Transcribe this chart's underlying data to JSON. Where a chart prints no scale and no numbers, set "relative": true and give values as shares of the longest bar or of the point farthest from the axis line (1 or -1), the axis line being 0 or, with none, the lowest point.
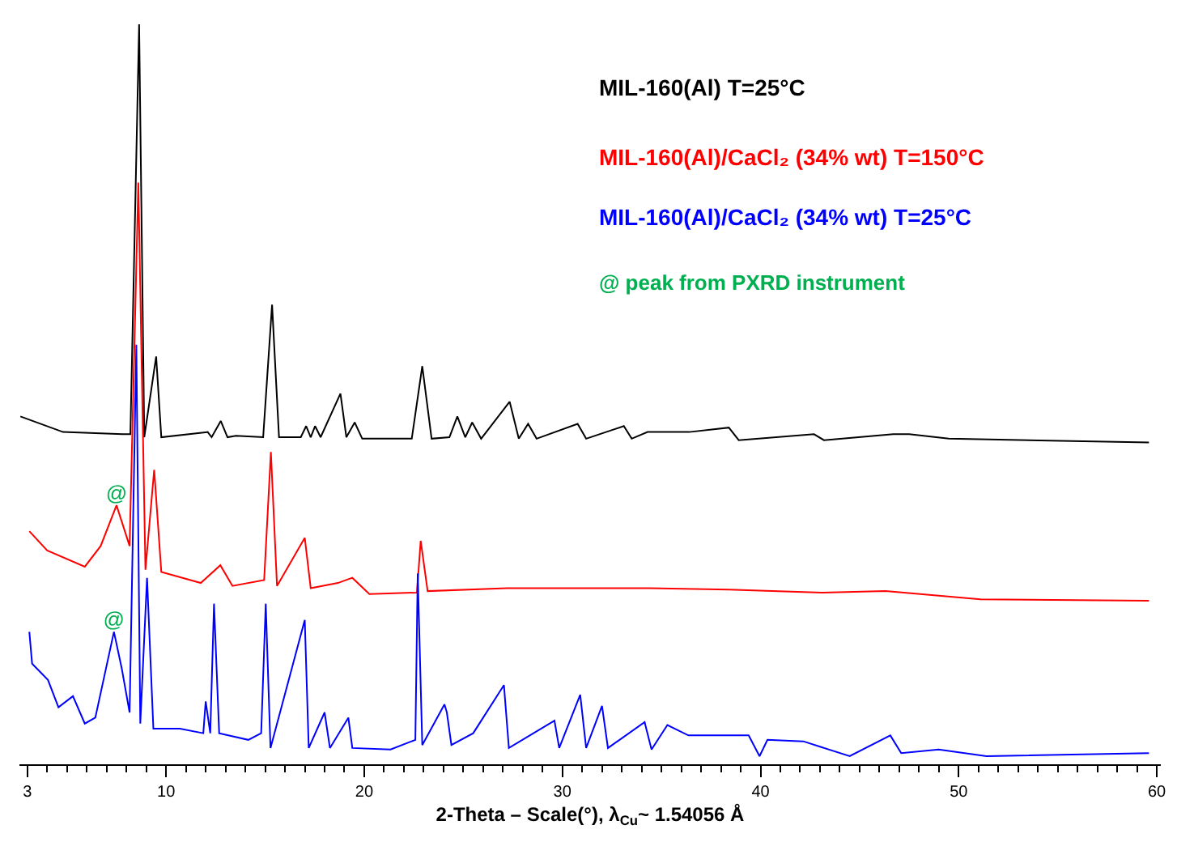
{
  "chart_data": {
    "type": "line",
    "relative": true,
    "xlabel": "2-Theta – Scale(°), λ$_{Cu}$~ 1.54056 Å",
    "xlim": [
      2.6,
      60.2
    ],
    "xticks": [
      3,
      {
        "value": 4,
        "label": null
      },
      {
        "value": 5,
        "label": null
      },
      {
        "value": 6,
        "label": null
      },
      {
        "value": 7,
        "label": null
      },
      {
        "value": 8,
        "label": null
      },
      {
        "value": 9,
        "label": null
      },
      10,
      {
        "value": 11,
        "label": null
      },
      {
        "value": 12,
        "label": null
      },
      {
        "value": 13,
        "label": null
      },
      {
        "value": 14,
        "label": null
      },
      {
        "value": 15,
        "label": null
      },
      {
        "value": 16,
        "label": null
      },
      {
        "value": 17,
        "label": null
      },
      {
        "value": 18,
        "label": null
      },
      {
        "value": 19,
        "label": null
      },
      20,
      {
        "value": 21,
        "label": null
      },
      {
        "value": 22,
        "label": null
      },
      {
        "value": 23,
        "label": null
      },
      {
        "value": 24,
        "label": null
      },
      {
        "value": 25,
        "label": null
      },
      {
        "value": 26,
        "label": null
      },
      {
        "value": 27,
        "label": null
      },
      {
        "value": 28,
        "label": null
      },
      {
        "value": 29,
        "label": null
      },
      30,
      {
        "value": 31,
        "label": null
      },
      {
        "value": 32,
        "label": null
      },
      {
        "value": 33,
        "label": null
      },
      {
        "value": 34,
        "label": null
      },
      {
        "value": 35,
        "label": null
      },
      {
        "value": 36,
        "label": null
      },
      {
        "value": 37,
        "label": null
      },
      {
        "value": 38,
        "label": null
      },
      {
        "value": 39,
        "label": null
      },
      40,
      {
        "value": 41,
        "label": null
      },
      {
        "value": 42,
        "label": null
      },
      {
        "value": 43,
        "label": null
      },
      {
        "value": 44,
        "label": null
      },
      {
        "value": 45,
        "label": null
      },
      {
        "value": 46,
        "label": null
      },
      {
        "value": 47,
        "label": null
      },
      {
        "value": 48,
        "label": null
      },
      {
        "value": 49,
        "label": null
      },
      50,
      {
        "value": 51,
        "label": null
      },
      {
        "value": 52,
        "label": null
      },
      {
        "value": 53,
        "label": null
      },
      {
        "value": 54,
        "label": null
      },
      {
        "value": 55,
        "label": null
      },
      {
        "value": 56,
        "label": null
      },
      {
        "value": 57,
        "label": null
      },
      {
        "value": 58,
        "label": null
      },
      {
        "value": 59,
        "label": null
      },
      60
    ],
    "tick_labels": "x",
    "grid": false,
    "legend": false,
    "marker": "none",
    "line_style": "solid",
    "series": [
      {
        "name": "MIL-160(Al) T=25°C",
        "color": "#000000",
        "x": [
          2.65,
          4.8,
          7.8,
          8.2,
          8.64,
          8.9,
          9.5,
          9.76,
          12.1,
          12.3,
          12.76,
          13.1,
          13.53,
          14.9,
          15.35,
          15.7,
          16.8,
          17.07,
          17.3,
          17.52,
          17.8,
          18.8,
          19.1,
          19.52,
          19.9,
          22.4,
          22.93,
          23.4,
          24.3,
          24.7,
          25.1,
          25.45,
          25.9,
          27.34,
          27.8,
          28.27,
          28.7,
          30.77,
          31.2,
          33.1,
          33.5,
          34.3,
          35.6,
          36.4,
          38.4,
          38.9,
          42.7,
          43.2,
          46.7,
          47.5,
          49.5,
          59.6
        ],
        "values": [
          0.47,
          0.449,
          0.446,
          0.446,
          1.0,
          0.442,
          0.551,
          0.442,
          0.449,
          0.442,
          0.464,
          0.442,
          0.444,
          0.442,
          0.621,
          0.442,
          0.442,
          0.457,
          0.442,
          0.457,
          0.442,
          0.501,
          0.442,
          0.462,
          0.44,
          0.44,
          0.538,
          0.44,
          0.442,
          0.47,
          0.442,
          0.462,
          0.44,
          0.49,
          0.44,
          0.46,
          0.44,
          0.46,
          0.44,
          0.457,
          0.44,
          0.449,
          0.449,
          0.449,
          0.455,
          0.438,
          0.446,
          0.438,
          0.446,
          0.446,
          0.44,
          0.435
        ]
      },
      {
        "name": "MIL-160(Al)/CaCl₂ (34% wt) T=150°C",
        "color": "#ff0000",
        "x": [
          3.1,
          4.0,
          5.9,
          6.7,
          7.5,
          8.16,
          8.6,
          8.96,
          9.4,
          9.76,
          11.75,
          12.74,
          13.35,
          14.95,
          15.29,
          15.6,
          17.0,
          17.3,
          18.67,
          19.4,
          20.26,
          22.66,
          22.85,
          23.2,
          27.2,
          32.9,
          34.4,
          38.4,
          43.1,
          46.3,
          51.1,
          59.6
        ],
        "values": [
          0.315,
          0.289,
          0.267,
          0.295,
          0.35,
          0.295,
          0.786,
          0.263,
          0.398,
          0.26,
          0.245,
          0.269,
          0.241,
          0.249,
          0.422,
          0.241,
          0.306,
          0.238,
          0.245,
          0.252,
          0.23,
          0.232,
          0.302,
          0.234,
          0.238,
          0.238,
          0.238,
          0.236,
          0.232,
          0.234,
          0.223,
          0.221
        ]
      },
      {
        "name": "MIL-160(Al)/CaCl₂ (34% wt) T=25°C",
        "color": "#0000ff",
        "x": [
          3.1,
          3.24,
          4.04,
          4.57,
          5.3,
          5.9,
          6.43,
          7.37,
          7.76,
          8.16,
          8.5,
          8.7,
          9.04,
          9.36,
          10.7,
          11.88,
          12.0,
          12.23,
          12.42,
          12.68,
          14.15,
          14.8,
          15.03,
          15.27,
          17.0,
          17.2,
          18.0,
          18.27,
          19.2,
          19.4,
          21.33,
          22.58,
          22.7,
          22.93,
          24.05,
          24.17,
          24.4,
          25.5,
          27.05,
          27.3,
          29.6,
          29.84,
          30.9,
          31.2,
          32.0,
          32.3,
          34.15,
          34.5,
          35.3,
          36.36,
          39.4,
          39.95,
          40.35,
          42.16,
          44.5,
          46.55,
          47.1,
          48.99,
          51.4,
          59.6
        ],
        "values": [
          0.179,
          0.136,
          0.114,
          0.077,
          0.092,
          0.055,
          0.063,
          0.179,
          0.13,
          0.07,
          0.567,
          0.055,
          0.252,
          0.048,
          0.048,
          0.042,
          0.085,
          0.042,
          0.217,
          0.042,
          0.033,
          0.042,
          0.217,
          0.022,
          0.195,
          0.022,
          0.07,
          0.022,
          0.063,
          0.022,
          0.02,
          0.033,
          0.258,
          0.026,
          0.081,
          0.07,
          0.026,
          0.042,
          0.107,
          0.022,
          0.059,
          0.022,
          0.094,
          0.022,
          0.079,
          0.022,
          0.057,
          0.02,
          0.053,
          0.039,
          0.039,
          0.011,
          0.033,
          0.031,
          0.011,
          0.039,
          0.015,
          0.02,
          0.011,
          0.015
        ]
      }
    ],
    "annotations": [
      {
        "text": "@",
        "x": 7.5,
        "y": 0.35
      },
      {
        "text": "@",
        "x": 7.37,
        "y": 0.179
      },
      "@ peak from PXRD instrument"
    ]
  }
}
